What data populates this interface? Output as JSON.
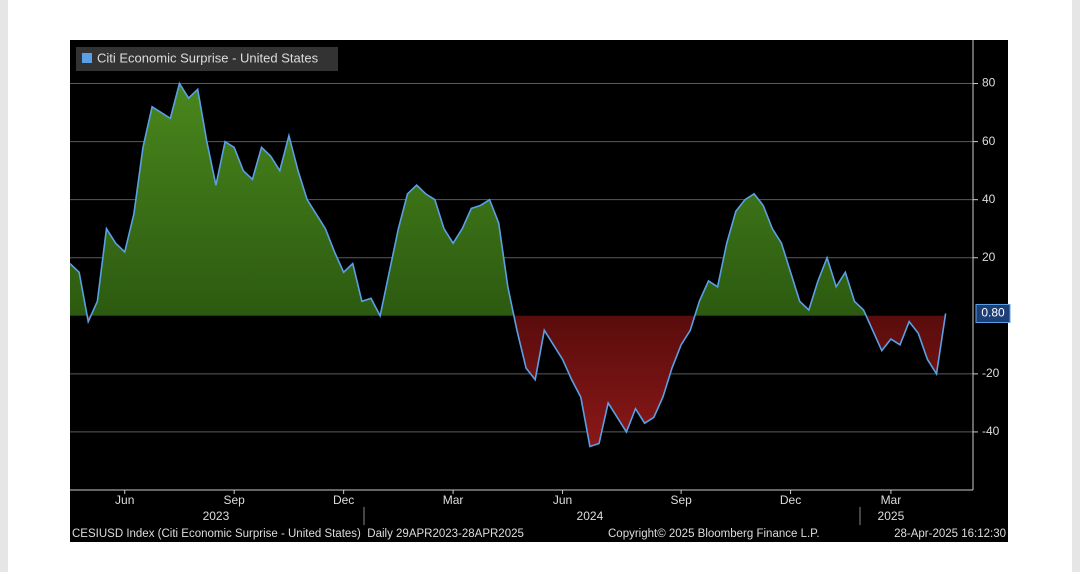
{
  "chart_data": {
    "type": "area",
    "series": [
      {
        "name": "Citi Economic Surprise - United States",
        "color": "#5aa0e6",
        "values": [
          18,
          15,
          -2,
          5,
          30,
          25,
          22,
          35,
          58,
          72,
          70,
          68,
          80,
          75,
          78,
          60,
          45,
          60,
          58,
          50,
          47,
          58,
          55,
          50,
          62,
          50,
          40,
          35,
          30,
          22,
          15,
          18,
          5,
          6,
          0,
          15,
          30,
          42,
          45,
          42,
          40,
          30,
          25,
          30,
          37,
          38,
          40,
          32,
          10,
          -5,
          -18,
          -22,
          -5,
          -10,
          -15,
          -22,
          -28,
          -45,
          -44,
          -30,
          -35,
          -40,
          -32,
          -37,
          -35,
          -28,
          -18,
          -10,
          -5,
          5,
          12,
          10,
          25,
          36,
          40,
          42,
          38,
          30,
          25,
          15,
          5,
          2,
          12,
          20,
          10,
          15,
          5,
          2,
          -5,
          -12,
          -8,
          -10,
          -2,
          -6,
          -15,
          -20,
          0.8
        ],
        "value_labels": [
          null,
          null,
          null,
          null,
          null,
          null,
          null,
          null,
          null,
          null,
          null,
          null,
          null,
          null,
          null,
          null,
          null,
          null,
          null,
          null,
          null,
          null,
          null,
          null,
          null,
          null,
          null,
          null,
          null,
          null,
          null,
          null,
          null,
          null,
          null,
          null,
          null,
          null,
          null,
          null,
          null,
          null,
          null,
          null,
          null,
          null,
          null,
          null,
          null,
          null,
          null,
          null,
          null,
          null,
          null,
          null,
          null,
          null,
          null,
          null,
          null,
          null,
          null,
          null,
          null,
          null,
          null,
          null,
          null,
          null,
          null,
          null,
          null,
          null,
          null,
          null,
          null,
          null,
          null,
          null,
          null,
          null,
          null,
          null,
          null,
          null,
          null,
          null,
          null,
          null,
          null,
          null,
          null,
          null,
          null,
          null,
          "0.80"
        ]
      }
    ],
    "categories": [
      null,
      null,
      null,
      null,
      null,
      null,
      "Jun",
      null,
      null,
      null,
      null,
      null,
      null,
      null,
      null,
      null,
      null,
      null,
      "Sep",
      null,
      null,
      null,
      null,
      null,
      null,
      null,
      null,
      null,
      null,
      null,
      "Dec",
      null,
      null,
      null,
      null,
      null,
      null,
      null,
      null,
      null,
      null,
      null,
      "Mar",
      null,
      null,
      null,
      null,
      null,
      null,
      null,
      null,
      null,
      null,
      null,
      "Jun",
      null,
      null,
      null,
      null,
      null,
      null,
      null,
      null,
      null,
      null,
      null,
      null,
      "Sep",
      null,
      null,
      null,
      null,
      null,
      null,
      null,
      null,
      null,
      null,
      null,
      "Dec",
      null,
      null,
      null,
      null,
      null,
      null,
      null,
      null,
      null,
      null,
      "Mar",
      null,
      null,
      null,
      null,
      null,
      null
    ],
    "category_years": [
      null,
      null,
      null,
      null,
      null,
      null,
      null,
      null,
      null,
      null,
      null,
      null,
      null,
      null,
      null,
      null,
      "2023",
      null,
      null,
      null,
      null,
      null,
      null,
      null,
      null,
      null,
      null,
      null,
      null,
      null,
      null,
      null,
      null,
      null,
      null,
      null,
      null,
      null,
      null,
      null,
      null,
      null,
      null,
      null,
      null,
      null,
      null,
      null,
      null,
      null,
      null,
      null,
      null,
      null,
      null,
      null,
      null,
      "2024",
      null,
      null,
      null,
      null,
      null,
      null,
      null,
      null,
      null,
      null,
      null,
      null,
      null,
      null,
      null,
      null,
      null,
      null,
      null,
      null,
      null,
      null,
      null,
      null,
      null,
      null,
      null,
      null,
      null,
      null,
      null,
      null,
      "2025",
      null,
      null,
      null,
      null,
      null,
      null
    ],
    "ylim": [
      -60,
      95
    ],
    "yticks": [
      -40,
      -20,
      20,
      40,
      60,
      80
    ],
    "grid": true,
    "positive_color": "#4f8f1f",
    "negative_color": "#9a1c1c",
    "footer": {
      "source": "CESIUSD Index (Citi Economic Surprise - United States)  Daily 29APR2023-28APR2025",
      "copyright": "Copyright© 2025 Bloomberg Finance L.P.",
      "timestamp": "28-Apr-2025 16:12:30"
    }
  }
}
